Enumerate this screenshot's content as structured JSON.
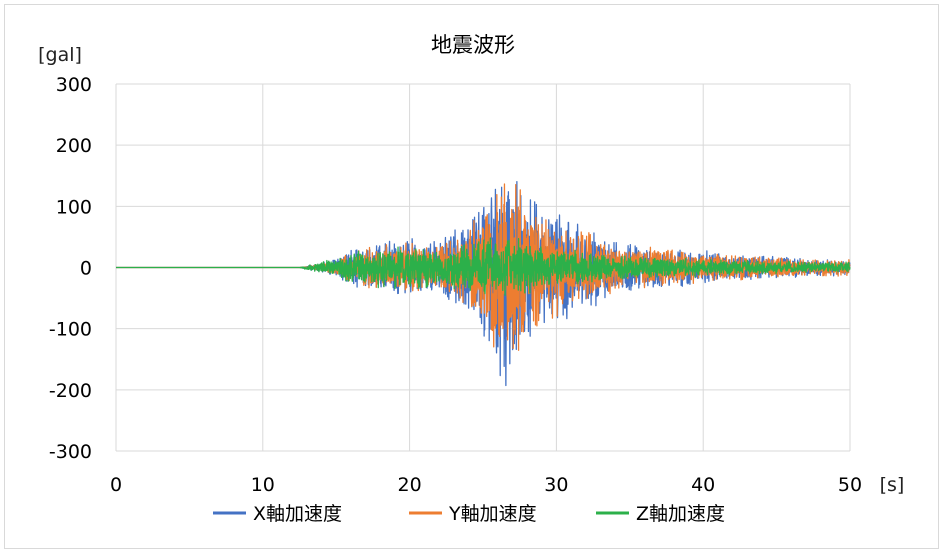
{
  "chart_data": {
    "type": "line",
    "title": "地震波形",
    "ylabel": "[gal]",
    "xlabel": "[s]",
    "xlim": [
      0,
      50
    ],
    "ylim": [
      -300,
      300
    ],
    "x_ticks": [
      "0",
      "10",
      "20",
      "30",
      "40",
      "50"
    ],
    "y_ticks": [
      "300",
      "200",
      "100",
      "0",
      "-100",
      "-200",
      "-300"
    ],
    "grid": true,
    "legend_position": "bottom",
    "series": [
      {
        "name": "X軸加速度",
        "color": "#4472C4",
        "envelope": [
          [
            0,
            0
          ],
          [
            12.5,
            0
          ],
          [
            13,
            3
          ],
          [
            14,
            8
          ],
          [
            15,
            15
          ],
          [
            16,
            30
          ],
          [
            17,
            40
          ],
          [
            18,
            45
          ],
          [
            19,
            50
          ],
          [
            20,
            55
          ],
          [
            21,
            45
          ],
          [
            22,
            48
          ],
          [
            23,
            70
          ],
          [
            24,
            90
          ],
          [
            25,
            120
          ],
          [
            26,
            180
          ],
          [
            26.6,
            222
          ],
          [
            27,
            180
          ],
          [
            27.3,
            195
          ],
          [
            28,
            140
          ],
          [
            29,
            100
          ],
          [
            30,
            95
          ],
          [
            31,
            85
          ],
          [
            32,
            75
          ],
          [
            33,
            60
          ],
          [
            34,
            45
          ],
          [
            35,
            42
          ],
          [
            36,
            40
          ],
          [
            37,
            35
          ],
          [
            38,
            32
          ],
          [
            39,
            30
          ],
          [
            40,
            28
          ],
          [
            41,
            25
          ],
          [
            42,
            22
          ],
          [
            43,
            22
          ],
          [
            44,
            20
          ],
          [
            45,
            18
          ],
          [
            46,
            18
          ],
          [
            47,
            16
          ],
          [
            48,
            15
          ],
          [
            49,
            14
          ],
          [
            50,
            12
          ]
        ]
      },
      {
        "name": "Y軸加速度",
        "color": "#ED7D31",
        "envelope": [
          [
            0,
            0
          ],
          [
            12.5,
            0
          ],
          [
            13,
            3
          ],
          [
            14,
            7
          ],
          [
            15,
            12
          ],
          [
            16,
            25
          ],
          [
            17,
            35
          ],
          [
            18,
            38
          ],
          [
            19,
            40
          ],
          [
            20,
            45
          ],
          [
            21,
            40
          ],
          [
            22,
            40
          ],
          [
            23,
            60
          ],
          [
            24,
            80
          ],
          [
            25,
            100
          ],
          [
            26,
            150
          ],
          [
            27,
            170
          ],
          [
            27.5,
            160
          ],
          [
            28,
            120
          ],
          [
            29,
            95
          ],
          [
            30,
            85
          ],
          [
            31,
            75
          ],
          [
            32,
            65
          ],
          [
            33,
            55
          ],
          [
            34,
            40
          ],
          [
            35,
            38
          ],
          [
            36,
            36
          ],
          [
            37,
            33
          ],
          [
            38,
            30
          ],
          [
            39,
            28
          ],
          [
            40,
            26
          ],
          [
            41,
            24
          ],
          [
            42,
            22
          ],
          [
            43,
            20
          ],
          [
            44,
            19
          ],
          [
            45,
            18
          ],
          [
            46,
            17
          ],
          [
            47,
            16
          ],
          [
            48,
            16
          ],
          [
            49,
            15
          ],
          [
            50,
            14
          ]
        ]
      },
      {
        "name": "Z軸加速度",
        "color": "#2CB04A",
        "envelope": [
          [
            0,
            0
          ],
          [
            12.5,
            0
          ],
          [
            13,
            4
          ],
          [
            14,
            10
          ],
          [
            15,
            15
          ],
          [
            16,
            28
          ],
          [
            17,
            32
          ],
          [
            18,
            35
          ],
          [
            19,
            38
          ],
          [
            20,
            40
          ],
          [
            21,
            35
          ],
          [
            22,
            35
          ],
          [
            23,
            40
          ],
          [
            24,
            45
          ],
          [
            25,
            50
          ],
          [
            26,
            60
          ],
          [
            27,
            55
          ],
          [
            28,
            45
          ],
          [
            29,
            38
          ],
          [
            30,
            35
          ],
          [
            31,
            30
          ],
          [
            32,
            28
          ],
          [
            33,
            25
          ],
          [
            34,
            22
          ],
          [
            35,
            20
          ],
          [
            36,
            19
          ],
          [
            37,
            18
          ],
          [
            38,
            17
          ],
          [
            39,
            16
          ],
          [
            40,
            15
          ],
          [
            41,
            14
          ],
          [
            42,
            13
          ],
          [
            43,
            12
          ],
          [
            44,
            12
          ],
          [
            45,
            11
          ],
          [
            46,
            11
          ],
          [
            47,
            10
          ],
          [
            48,
            10
          ],
          [
            49,
            9
          ],
          [
            50,
            9
          ]
        ]
      }
    ]
  }
}
